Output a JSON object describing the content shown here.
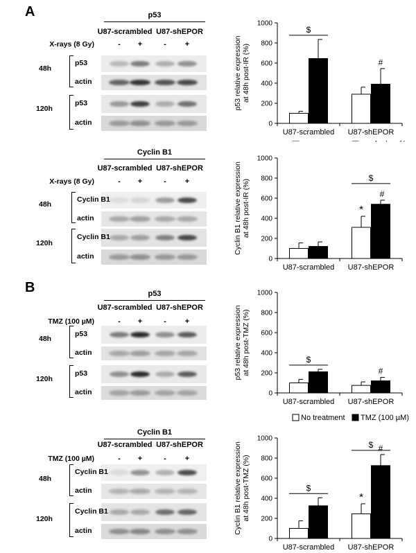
{
  "panel_a_label": "A",
  "panel_b_label": "B",
  "groups": [
    "U87-scrambled",
    "U87-shEPOR"
  ],
  "signs": [
    "-",
    "+",
    "-",
    "+"
  ],
  "time_labels": [
    "48h",
    "120h"
  ],
  "protein_p53": "p53",
  "protein_cyclin": "Cyclin B1",
  "loading_control": "actin",
  "treatment_xray": "X-rays (8 Gy)",
  "treatment_tmz": "TMZ (100 µM)",
  "legend_control": "No treatment",
  "sig_dollar": "$",
  "sig_hash": "#",
  "sig_star": "*",
  "colors": {
    "control": "#ffffff",
    "treated": "#000000"
  },
  "chart_data": [
    {
      "type": "bar",
      "ylabel": "p53 relative expression at 48h post-IR (%)",
      "categories": [
        "U87-scrambled",
        "U87-shEPOR"
      ],
      "ylim": [
        0,
        1000
      ],
      "yticks": [
        0,
        200,
        400,
        600,
        800,
        1000
      ],
      "series": [
        {
          "name": "No treatment",
          "values": [
            100,
            290
          ],
          "errors": [
            20,
            70
          ]
        },
        {
          "name": "X-rays (8 Gy)",
          "values": [
            645,
            390
          ],
          "errors": [
            190,
            155
          ]
        }
      ],
      "annotations": [
        "$",
        "#"
      ]
    },
    {
      "type": "bar",
      "ylabel": "Cyclin B1 relative expression at 48h post-IR (%)",
      "categories": [
        "U87-scrambled",
        "U87-shEPOR"
      ],
      "ylim": [
        0,
        1000
      ],
      "yticks": [
        0,
        200,
        400,
        600,
        800,
        1000
      ],
      "series": [
        {
          "name": "No treatment",
          "values": [
            100,
            310
          ],
          "errors": [
            55,
            110
          ]
        },
        {
          "name": "X-rays (8 Gy)",
          "values": [
            120,
            540
          ],
          "errors": [
            45,
            40
          ]
        }
      ],
      "legend": [
        "No treatment",
        "X-rays (8 Gy)"
      ],
      "annotations": [
        "*",
        "#",
        "$"
      ]
    },
    {
      "type": "bar",
      "ylabel": "p53 relative expression at 48h post-TMZ (%)",
      "categories": [
        "U87-scrambled",
        "U87-shEPOR"
      ],
      "ylim": [
        0,
        1000
      ],
      "yticks": [
        0,
        200,
        400,
        600,
        800,
        1000
      ],
      "series": [
        {
          "name": "No treatment",
          "values": [
            100,
            75
          ],
          "errors": [
            35,
            35
          ]
        },
        {
          "name": "TMZ (100 µM)",
          "values": [
            210,
            120
          ],
          "errors": [
            25,
            35
          ]
        }
      ],
      "annotations": [
        "$",
        "#"
      ]
    },
    {
      "type": "bar",
      "ylabel": "Cyclin B1 relative expression at 48h post-TMZ (%)",
      "categories": [
        "U87-scrambled",
        "U87-shEPOR"
      ],
      "ylim": [
        0,
        1000
      ],
      "yticks": [
        0,
        200,
        400,
        600,
        800,
        1000
      ],
      "series": [
        {
          "name": "No treatment",
          "values": [
            100,
            245
          ],
          "errors": [
            75,
            100
          ]
        },
        {
          "name": "TMZ (100 µM)",
          "values": [
            325,
            725
          ],
          "errors": [
            80,
            110
          ]
        }
      ],
      "legend": [
        "No treatment",
        "TMZ (100 µM)"
      ],
      "annotations": [
        "$",
        "*",
        "#",
        "$"
      ]
    }
  ]
}
